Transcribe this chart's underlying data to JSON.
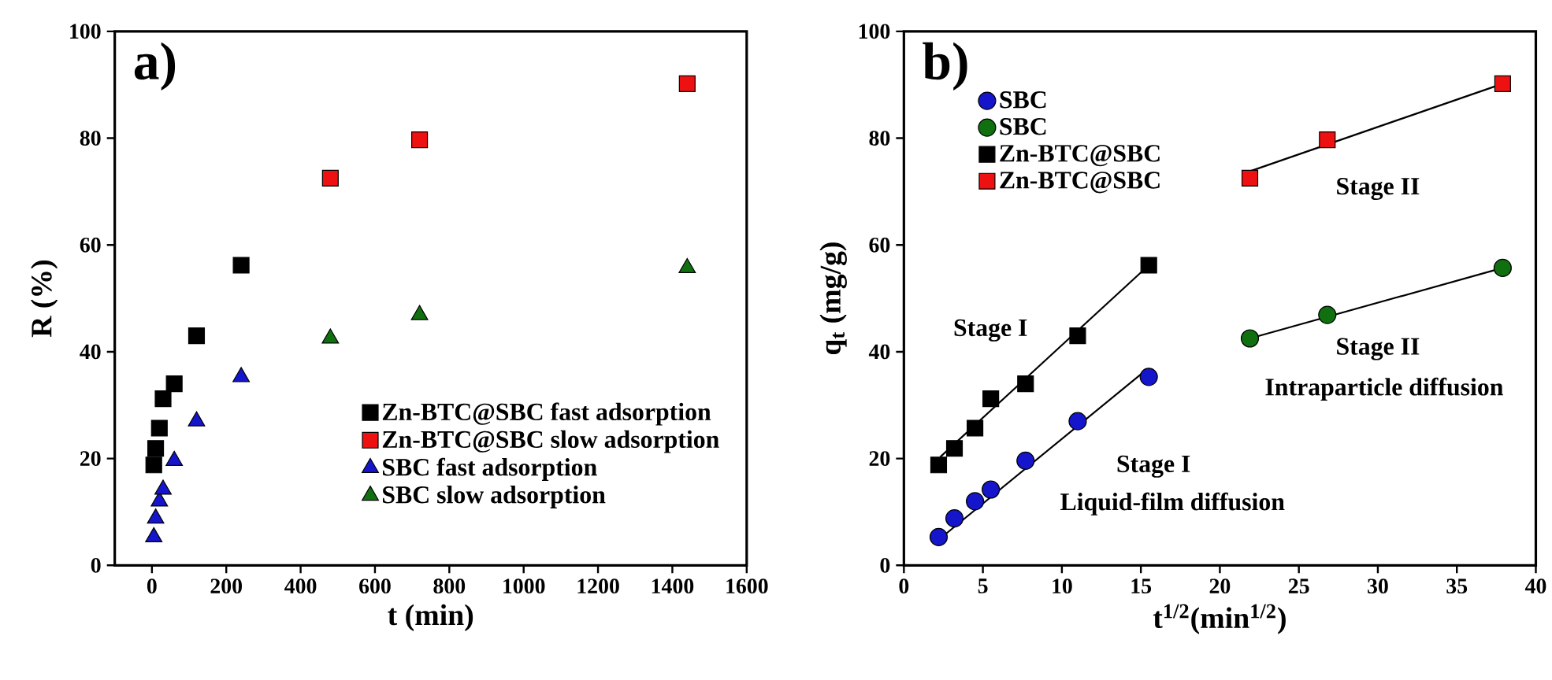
{
  "chart_data": [
    {
      "type": "scatter",
      "xlabel": "t (min)",
      "ylabel": "R (%)",
      "annotations": [
        "a)"
      ],
      "xlim": [
        -100,
        1600
      ],
      "xticks": [
        0,
        200,
        400,
        600,
        800,
        1000,
        1200,
        1400,
        1600
      ],
      "ylim": [
        0,
        100
      ],
      "yticks": [
        0,
        20,
        40,
        60,
        80,
        100
      ],
      "grid": false,
      "legend": "bottom right",
      "series": [
        {
          "name": "Zn-BTC@SBC fast adsorption",
          "color": "#000000",
          "marker": "square",
          "x": [
            5,
            10,
            20,
            30,
            60,
            120,
            240
          ],
          "values": [
            18.8,
            21.9,
            25.7,
            31.2,
            34.0,
            43.0,
            56.2
          ]
        },
        {
          "name": "Zn-BTC@SBC slow adsorption",
          "color": "#ee1111",
          "marker": "square",
          "x": [
            480,
            720,
            1440
          ],
          "values": [
            72.5,
            79.7,
            90.2
          ]
        },
        {
          "name": "SBC fast adsorption",
          "color": "#1515cc",
          "marker": "triangle",
          "x": [
            5,
            10,
            20,
            30,
            60,
            120,
            240
          ],
          "values": [
            5.3,
            8.8,
            12.0,
            14.2,
            19.6,
            27.0,
            35.3
          ]
        },
        {
          "name": "SBC slow adsorption",
          "color": "#107010",
          "marker": "triangle",
          "x": [
            480,
            720,
            1440
          ],
          "values": [
            42.5,
            46.9,
            55.7
          ]
        }
      ]
    },
    {
      "type": "scatter",
      "xlabel": "t$^{1/2}$(min$^{1/2}$)",
      "ylabel": "q$_{t}$ (mg/g)",
      "annotations": [
        "b)",
        "Stage I",
        "Stage I",
        "Liquid-film diffusion",
        "Stage II",
        "Stage II",
        "Intraparticle diffusion"
      ],
      "xlim": [
        0,
        40
      ],
      "xticks": [
        0,
        5,
        10,
        15,
        20,
        25,
        30,
        35,
        40
      ],
      "ylim": [
        0,
        100
      ],
      "yticks": [
        0,
        20,
        40,
        60,
        80,
        100
      ],
      "grid": false,
      "legend": "top left",
      "series": [
        {
          "name": "SBC",
          "color": "#1515cc",
          "marker": "circle",
          "x": [
            2.2,
            3.2,
            4.5,
            5.5,
            7.7,
            11.0,
            15.5
          ],
          "values": [
            5.3,
            8.8,
            12.0,
            14.2,
            19.6,
            27.0,
            35.3
          ]
        },
        {
          "name": "SBC",
          "color": "#107010",
          "marker": "circle",
          "x": [
            21.9,
            26.8,
            37.9
          ],
          "values": [
            42.5,
            46.9,
            55.7
          ]
        },
        {
          "name": "Zn-BTC@SBC",
          "color": "#000000",
          "marker": "square",
          "x": [
            2.2,
            3.2,
            4.5,
            5.5,
            7.7,
            11.0,
            15.5
          ],
          "values": [
            18.8,
            21.9,
            25.7,
            31.2,
            34.0,
            43.0,
            56.2
          ]
        },
        {
          "name": "Zn-BTC@SBC",
          "color": "#ee1111",
          "marker": "square",
          "x": [
            21.9,
            26.8,
            37.9
          ],
          "values": [
            72.5,
            79.7,
            90.2
          ]
        },
        {
          "type": "line",
          "color": "#000000",
          "marker": "none",
          "x": [
            2.2,
            15.3
          ],
          "values": [
            4.8,
            36.5
          ]
        },
        {
          "type": "line",
          "color": "#000000",
          "marker": "none",
          "x": [
            21.9,
            37.9
          ],
          "values": [
            42.5,
            55.7
          ]
        },
        {
          "type": "line",
          "color": "#000000",
          "marker": "none",
          "x": [
            2.3,
            15.5
          ],
          "values": [
            20.3,
            56.2
          ]
        },
        {
          "type": "line",
          "color": "#000000",
          "marker": "none",
          "x": [
            21.9,
            37.9
          ],
          "values": [
            73.8,
            90.2
          ]
        }
      ]
    }
  ]
}
